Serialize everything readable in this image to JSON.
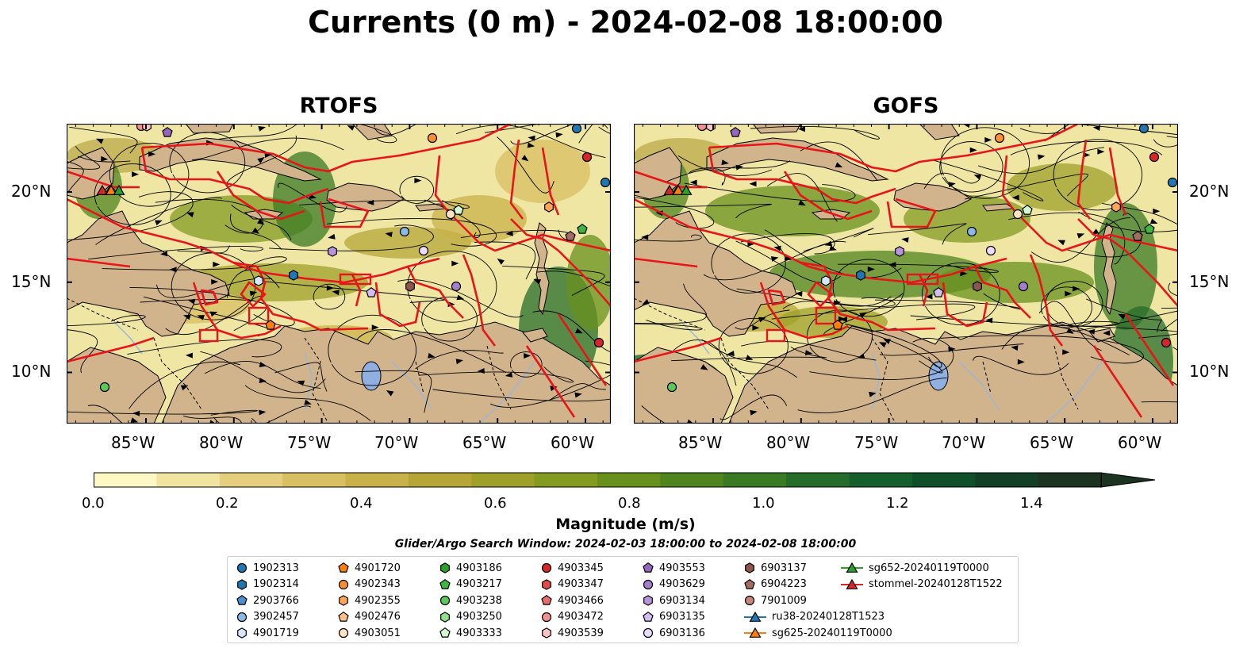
{
  "title": "Currents (0 m) - 2024-02-08 18:00:00",
  "maps": [
    {
      "title": "RTOFS"
    },
    {
      "title": "GOFS"
    }
  ],
  "x_ticks": [
    "85°W",
    "80°W",
    "75°W",
    "70°W",
    "65°W",
    "60°W"
  ],
  "y_ticks": [
    "20°N",
    "15°N",
    "10°N"
  ],
  "colorbar": {
    "label": "Magnitude (m/s)",
    "ticks": [
      "0.0",
      "0.2",
      "0.4",
      "0.6",
      "0.8",
      "1.0",
      "1.2",
      "1.4"
    ],
    "colors": [
      "#fdf8c4",
      "#f1e3a0",
      "#e5cf7e",
      "#d8bf62",
      "#c9b14a",
      "#b6a637",
      "#9ea02a",
      "#849b22",
      "#68901d",
      "#4f841f",
      "#3a7a24",
      "#256c2a",
      "#165f2d",
      "#0f4f2a",
      "#123f25",
      "#1b3320"
    ]
  },
  "search_window": "Glider/Argo Search Window: 2024-02-03 18:00:00 to 2024-02-08 18:00:00",
  "legend": [
    {
      "label": "1902313",
      "marker": "circle",
      "color": "#1f77b4"
    },
    {
      "label": "1902314",
      "marker": "hexagon",
      "color": "#1f77b4"
    },
    {
      "label": "2903766",
      "marker": "pentagon",
      "color": "#4c8fd1"
    },
    {
      "label": "3902457",
      "marker": "circle",
      "color": "#8ab9e8"
    },
    {
      "label": "4901719",
      "marker": "hexagon",
      "color": "#d6e9fb"
    },
    {
      "label": "4901720",
      "marker": "pentagon",
      "color": "#ff7f0e"
    },
    {
      "label": "4902343",
      "marker": "circle",
      "color": "#ff8f2e"
    },
    {
      "label": "4902355",
      "marker": "hexagon",
      "color": "#ffa557"
    },
    {
      "label": "4902476",
      "marker": "pentagon",
      "color": "#ffc08a"
    },
    {
      "label": "4903051",
      "marker": "circle",
      "color": "#ffe3c2"
    },
    {
      "label": "4903186",
      "marker": "hexagon",
      "color": "#2ca02c"
    },
    {
      "label": "4903217",
      "marker": "pentagon",
      "color": "#3db83d"
    },
    {
      "label": "4903238",
      "marker": "circle",
      "color": "#5cc85c"
    },
    {
      "label": "4903250",
      "marker": "hexagon",
      "color": "#8fe08f"
    },
    {
      "label": "4903333",
      "marker": "pentagon",
      "color": "#d3f7d3"
    },
    {
      "label": "4903345",
      "marker": "circle",
      "color": "#d62728"
    },
    {
      "label": "4903347",
      "marker": "hexagon",
      "color": "#e24a4a"
    },
    {
      "label": "4903466",
      "marker": "pentagon",
      "color": "#ea6b6b"
    },
    {
      "label": "4903472",
      "marker": "circle",
      "color": "#f29090"
    },
    {
      "label": "4903539",
      "marker": "hexagon",
      "color": "#fbc3c3"
    },
    {
      "label": "4903553",
      "marker": "pentagon",
      "color": "#9467bd"
    },
    {
      "label": "4903629",
      "marker": "circle",
      "color": "#a57fcc"
    },
    {
      "label": "6903134",
      "marker": "hexagon",
      "color": "#b794dc"
    },
    {
      "label": "6903135",
      "marker": "pentagon",
      "color": "#d4bdf0"
    },
    {
      "label": "6903136",
      "marker": "circle",
      "color": "#ecdcfb"
    },
    {
      "label": "6903137",
      "marker": "hexagon",
      "color": "#8c564b"
    },
    {
      "label": "6904223",
      "marker": "pentagon",
      "color": "#a56d61"
    },
    {
      "label": "7901009",
      "marker": "circle",
      "color": "#c4877b"
    },
    {
      "label": "ru38-20240128T1523",
      "marker": "triangle",
      "color": "#1f77b4"
    },
    {
      "label": "sg625-20240119T0000",
      "marker": "triangle",
      "color": "#ff7f0e"
    },
    {
      "label": "sg652-20240119T0000",
      "marker": "triangle",
      "color": "#2ca02c"
    },
    {
      "label": "stommel-20240128T1522",
      "marker": "triangle",
      "color": "#d62728"
    }
  ]
}
